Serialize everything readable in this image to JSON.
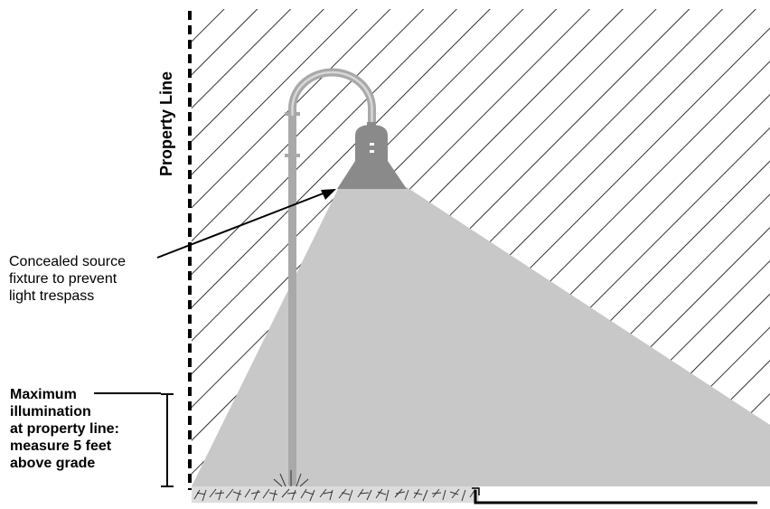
{
  "diagram": {
    "property_line_label": "Property  Line",
    "concealed_note": [
      "Concealed source",
      "fixture to prevent",
      "light trespass"
    ],
    "max_note": [
      "Maximum",
      "illumination",
      "at property line:",
      "measure 5 feet",
      "above grade"
    ]
  },
  "colors": {
    "light_cone": "#c8c8c8",
    "pole": "#a9a9a9",
    "fixture_head": "#8a8a8a",
    "hatch": "#000000",
    "property_line": "#000000"
  }
}
